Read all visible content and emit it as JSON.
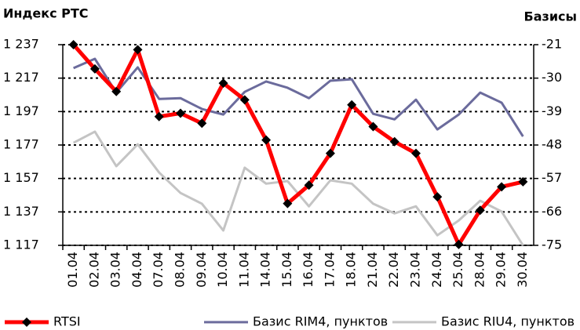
{
  "chart_data": {
    "type": "line",
    "y_title": "Индекс РТС",
    "y2_title": "Базисы",
    "categories": [
      "01.04",
      "02.04",
      "03.04",
      "04.04",
      "07.04",
      "08.04",
      "09.04",
      "10.04",
      "11.04",
      "14.04",
      "15.04",
      "16.04",
      "17.04",
      "18.04",
      "21.04",
      "22.04",
      "23.04",
      "24.04",
      "25.04",
      "28.04",
      "29.04",
      "30.04"
    ],
    "series": [
      {
        "name": "RTSI",
        "color": "#ff0000",
        "marker_color": "#000000",
        "values": [
          1237,
          1222.5,
          1209,
          1234,
          1194,
          1196,
          1190,
          1214,
          1204,
          1180,
          1142,
          1153,
          1172,
          1201,
          1188,
          1179,
          1172,
          1146,
          1117.5,
          1138,
          1152,
          1155
        ]
      },
      {
        "name": "Базис RIM4, пунктов",
        "color": "#6b6b9c",
        "axis": "y2",
        "values": [
          -27.3,
          -24.8,
          -33.9,
          -27.1,
          -35.6,
          -35.4,
          -38.3,
          -39.8,
          -33.7,
          -30.9,
          -32.6,
          -35.4,
          -30.7,
          -30.3,
          -39.6,
          -41.1,
          -35.8,
          -43.8,
          -39.8,
          -33.9,
          -36.6,
          -45.7
        ]
      },
      {
        "name": "Базис RIU4, пунктов",
        "color": "#c4c4c4",
        "axis": "y2",
        "values": [
          -47.4,
          -44.4,
          -53.7,
          -47.8,
          -55.4,
          -60.9,
          -63.8,
          -71.0,
          -54.1,
          -58.4,
          -57.7,
          -64.5,
          -57.5,
          -58.4,
          -63.8,
          -66.4,
          -64.5,
          -72.3,
          -68.3,
          -63.0,
          -65.9,
          -75
        ]
      }
    ],
    "ylim": [
      1117,
      1237
    ],
    "yticks": [
      {
        "value": 1117,
        "label": "1 117"
      },
      {
        "value": 1137,
        "label": "1 137"
      },
      {
        "value": 1157,
        "label": "1 157"
      },
      {
        "value": 1177,
        "label": "1 177"
      },
      {
        "value": 1197,
        "label": "1 197"
      },
      {
        "value": 1217,
        "label": "1 217"
      },
      {
        "value": 1237,
        "label": "1 237"
      }
    ],
    "y2lim": [
      -75,
      -21
    ],
    "y2ticks": [
      -75,
      -66,
      -57,
      -48,
      -39,
      -30,
      -21
    ],
    "grid": true
  }
}
